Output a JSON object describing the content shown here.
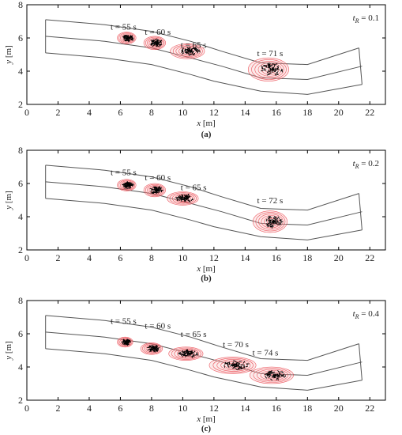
{
  "chart_data": [
    {
      "panel": "(a)",
      "type": "scatter",
      "param_label": "t",
      "param_sub": "R",
      "param_value": " = 0.1",
      "xlabel": "x",
      "xunit": " [m]",
      "ylabel": "y",
      "yunit": " [m]",
      "xlim": [
        0,
        23
      ],
      "ylim": [
        2,
        8
      ],
      "xticks": [
        0,
        2,
        4,
        6,
        8,
        10,
        12,
        14,
        16,
        18,
        20,
        22
      ],
      "yticks": [
        2,
        4,
        6,
        8
      ],
      "annotations": [
        {
          "text": "t = 55 s",
          "x": 6.2,
          "y": 6.5
        },
        {
          "text": "t = 60 s",
          "x": 8.4,
          "y": 6.2
        },
        {
          "text": "t = 65 s",
          "x": 10.7,
          "y": 5.4
        },
        {
          "text": "t = 71 s",
          "x": 15.6,
          "y": 4.9
        }
      ],
      "clusters": [
        {
          "x": 6.4,
          "y": 6.0,
          "rx": 0.6,
          "ry": 0.35
        },
        {
          "x": 8.2,
          "y": 5.7,
          "rx": 0.7,
          "ry": 0.4
        },
        {
          "x": 10.3,
          "y": 5.2,
          "rx": 1.1,
          "ry": 0.45
        },
        {
          "x": 15.5,
          "y": 4.1,
          "rx": 1.3,
          "ry": 0.7
        }
      ]
    },
    {
      "panel": "(b)",
      "type": "scatter",
      "param_label": "t",
      "param_sub": "R",
      "param_value": " = 0.2",
      "xlabel": "x",
      "xunit": " [m]",
      "ylabel": "y",
      "yunit": " [m]",
      "xlim": [
        0,
        23
      ],
      "ylim": [
        2,
        8
      ],
      "xticks": [
        0,
        2,
        4,
        6,
        8,
        10,
        12,
        14,
        16,
        18,
        20,
        22
      ],
      "yticks": [
        2,
        4,
        6,
        8
      ],
      "annotations": [
        {
          "text": "t = 55 s",
          "x": 6.2,
          "y": 6.5
        },
        {
          "text": "t = 60 s",
          "x": 8.4,
          "y": 6.2
        },
        {
          "text": "t = 65 s",
          "x": 10.7,
          "y": 5.6
        },
        {
          "text": "t = 72 s",
          "x": 15.6,
          "y": 4.8
        }
      ],
      "clusters": [
        {
          "x": 6.4,
          "y": 5.9,
          "rx": 0.6,
          "ry": 0.35
        },
        {
          "x": 8.2,
          "y": 5.6,
          "rx": 0.7,
          "ry": 0.4
        },
        {
          "x": 10.0,
          "y": 5.1,
          "rx": 1.0,
          "ry": 0.4
        },
        {
          "x": 15.6,
          "y": 3.7,
          "rx": 1.1,
          "ry": 0.65
        }
      ]
    },
    {
      "panel": "(c)",
      "type": "scatter",
      "param_label": "t",
      "param_sub": "R",
      "param_value": " = 0.4",
      "xlabel": "x",
      "xunit": " [m]",
      "ylabel": "y",
      "yunit": " [m]",
      "xlim": [
        0,
        23
      ],
      "ylim": [
        2,
        8
      ],
      "xticks": [
        0,
        2,
        4,
        6,
        8,
        10,
        12,
        14,
        16,
        18,
        20,
        22
      ],
      "yticks": [
        2,
        4,
        6,
        8
      ],
      "annotations": [
        {
          "text": "t = 55 s",
          "x": 6.2,
          "y": 6.6
        },
        {
          "text": "t = 60 s",
          "x": 8.4,
          "y": 6.3
        },
        {
          "text": "t = 65 s",
          "x": 10.7,
          "y": 5.8
        },
        {
          "text": "t = 70 s",
          "x": 13.4,
          "y": 5.2
        },
        {
          "text": "t = 74 s",
          "x": 15.3,
          "y": 4.7
        }
      ],
      "clusters": [
        {
          "x": 6.3,
          "y": 5.5,
          "rx": 0.5,
          "ry": 0.3
        },
        {
          "x": 8.0,
          "y": 5.1,
          "rx": 0.7,
          "ry": 0.35
        },
        {
          "x": 10.2,
          "y": 4.8,
          "rx": 1.1,
          "ry": 0.4
        },
        {
          "x": 13.2,
          "y": 4.1,
          "rx": 1.5,
          "ry": 0.5
        },
        {
          "x": 15.7,
          "y": 3.5,
          "rx": 1.4,
          "ry": 0.5
        }
      ]
    }
  ],
  "channel": {
    "upper": [
      [
        1.2,
        7.1
      ],
      [
        5,
        6.8
      ],
      [
        8,
        6.4
      ],
      [
        10.5,
        5.8
      ],
      [
        11.5,
        5.5
      ],
      [
        12.5,
        5.2
      ],
      [
        15,
        4.5
      ],
      [
        18,
        4.4
      ],
      [
        21.3,
        5.4
      ]
    ],
    "center": [
      [
        1.2,
        6.1
      ],
      [
        5,
        5.8
      ],
      [
        8,
        5.4
      ],
      [
        10.5,
        4.8
      ],
      [
        12.5,
        4.3
      ],
      [
        15,
        3.6
      ],
      [
        18,
        3.5
      ],
      [
        21.5,
        4.3
      ]
    ],
    "lower": [
      [
        1.2,
        5.1
      ],
      [
        5,
        4.8
      ],
      [
        8,
        4.4
      ],
      [
        10.5,
        3.8
      ],
      [
        12,
        3.4
      ],
      [
        15,
        2.8
      ],
      [
        18,
        2.6
      ],
      [
        21.5,
        3.2
      ]
    ],
    "inlet": [
      [
        1.2,
        5.1
      ],
      [
        1.2,
        7.1
      ]
    ],
    "outlet": [
      [
        21.3,
        5.4
      ],
      [
        21.5,
        3.2
      ]
    ]
  },
  "colors": {
    "axis": "#000000",
    "channel": "#555555",
    "contour": "#e8303a",
    "contour_fill": "#f7c4c4",
    "particle": "#000000"
  }
}
